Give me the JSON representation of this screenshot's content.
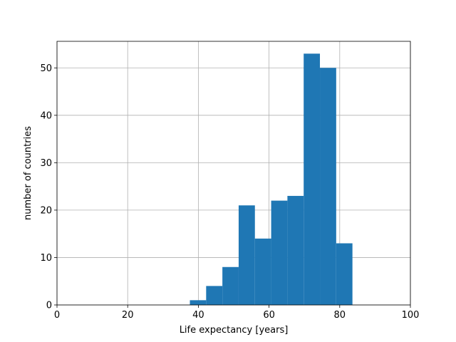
{
  "chart_data": {
    "type": "bar",
    "subtype": "histogram",
    "xlabel": "Life expectancy [years]",
    "ylabel": "number of countries",
    "xlim": [
      0,
      100
    ],
    "ylim": [
      0,
      55.6
    ],
    "xticks": [
      0,
      20,
      40,
      60,
      80,
      100
    ],
    "yticks": [
      0,
      10,
      20,
      30,
      40,
      50
    ],
    "grid": true,
    "bar_color": "#1f77b4",
    "bins": [
      {
        "x0": 37.6,
        "x1": 42.2,
        "count": 1
      },
      {
        "x0": 42.2,
        "x1": 46.8,
        "count": 4
      },
      {
        "x0": 46.8,
        "x1": 51.4,
        "count": 8
      },
      {
        "x0": 51.4,
        "x1": 56.0,
        "count": 21
      },
      {
        "x0": 56.0,
        "x1": 60.6,
        "count": 14
      },
      {
        "x0": 60.6,
        "x1": 65.2,
        "count": 22
      },
      {
        "x0": 65.2,
        "x1": 69.8,
        "count": 23
      },
      {
        "x0": 69.8,
        "x1": 74.4,
        "count": 53
      },
      {
        "x0": 74.4,
        "x1": 79.0,
        "count": 50
      },
      {
        "x0": 79.0,
        "x1": 83.6,
        "count": 13
      }
    ]
  }
}
